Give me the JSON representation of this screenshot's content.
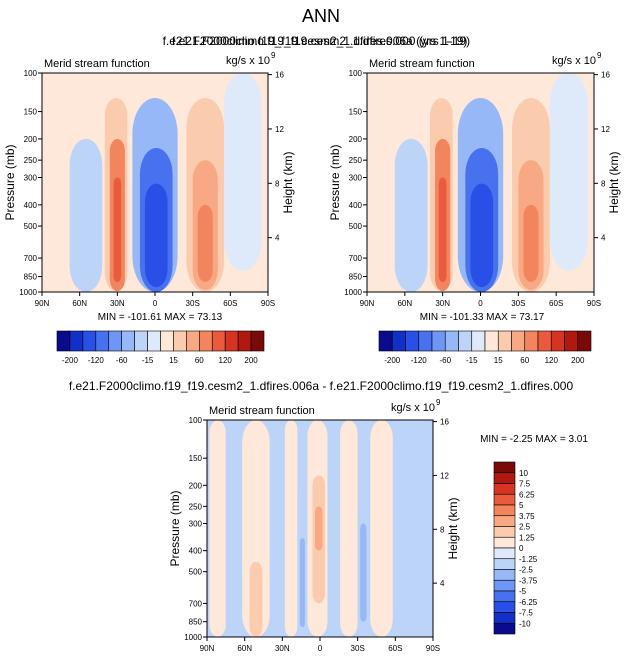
{
  "page": {
    "title": "ANN"
  },
  "colors": {
    "neg": [
      "#0a0a8c",
      "#1030c8",
      "#2850e6",
      "#4672f0",
      "#6e96f4",
      "#96b8f6",
      "#bcd4f8",
      "#deeafa"
    ],
    "pos": [
      "#fde8da",
      "#fbcbae",
      "#f8a882",
      "#f2845e",
      "#ea5a3c",
      "#d63420",
      "#b01810",
      "#7a0a08"
    ],
    "grid": "#000000"
  },
  "chart_data": [
    {
      "id": "panel-a",
      "type": "heatmap",
      "title": "f.e21.F2000climo.f19_f19.cesm2_1.dfires.006a (yrs 1-19)",
      "subtitle_left": "Merid stream function",
      "units": "kg/s x 10",
      "units_exp": "9",
      "ylabel": "Pressure (mb)",
      "ylabel_right": "Height (km)",
      "xticks": [
        "90N",
        "60N",
        "30N",
        "0",
        "30S",
        "60S",
        "90S"
      ],
      "yticks": [
        "100",
        "150",
        "200",
        "250",
        "300",
        "400",
        "500",
        "700",
        "850",
        "1000"
      ],
      "yticks_right": [
        "16",
        "12",
        "8",
        "4"
      ],
      "stats": "MIN = -101.61   MAX = 73.13",
      "levels": [
        -200,
        -160,
        -120,
        -80,
        -60,
        -40,
        -15,
        -5,
        5,
        15,
        40,
        60,
        80,
        120,
        160,
        200
      ],
      "level_labels": [
        "-200",
        "-120",
        "-60",
        "-15",
        "15",
        "60",
        "120",
        "200"
      ],
      "cells": [
        {
          "lat": [
            -68,
            -42
          ],
          "p": [
            200,
            1000
          ],
          "v": -10
        },
        {
          "lat": [
            -40,
            -22
          ],
          "p": [
            130,
            990
          ],
          "v": 20
        },
        {
          "lat": [
            -36,
            -24
          ],
          "p": [
            200,
            990
          ],
          "v": 60
        },
        {
          "lat": [
            -33,
            -27
          ],
          "p": [
            300,
            900
          ],
          "v": 80
        },
        {
          "lat": [
            -18,
            18
          ],
          "p": [
            130,
            1000
          ],
          "v": -40
        },
        {
          "lat": [
            -12,
            14
          ],
          "p": [
            220,
            1000
          ],
          "v": -70
        },
        {
          "lat": [
            -8,
            10
          ],
          "p": [
            320,
            950
          ],
          "v": -90
        },
        {
          "lat": [
            25,
            55
          ],
          "p": [
            130,
            1000
          ],
          "v": 15
        },
        {
          "lat": [
            30,
            50
          ],
          "p": [
            250,
            980
          ],
          "v": 40
        },
        {
          "lat": [
            34,
            46
          ],
          "p": [
            400,
            900
          ],
          "v": 65
        },
        {
          "lat": [
            55,
            85
          ],
          "p": [
            100,
            800
          ],
          "v": -5
        }
      ]
    },
    {
      "id": "panel-b",
      "type": "heatmap",
      "title": "f.e21.F2000climo.f19_f19.cesm2_1.dfires.000 (yrs 1-19)",
      "subtitle_left": "Merid stream function",
      "units": "kg/s x 10",
      "units_exp": "9",
      "ylabel": "Pressure (mb)",
      "ylabel_right": "Height (km)",
      "xticks": [
        "90N",
        "60N",
        "30N",
        "0",
        "30S",
        "60S",
        "90S"
      ],
      "yticks": [
        "100",
        "150",
        "200",
        "250",
        "300",
        "400",
        "500",
        "700",
        "850",
        "1000"
      ],
      "yticks_right": [
        "16",
        "12",
        "8",
        "4"
      ],
      "stats": "MIN = -101.33   MAX = 73.17",
      "levels": [
        -200,
        -160,
        -120,
        -80,
        -60,
        -40,
        -15,
        -5,
        5,
        15,
        40,
        60,
        80,
        120,
        160,
        200
      ],
      "level_labels": [
        "-200",
        "-120",
        "-60",
        "-15",
        "15",
        "60",
        "120",
        "200"
      ],
      "cells": [
        {
          "lat": [
            -68,
            -42
          ],
          "p": [
            200,
            1000
          ],
          "v": -10
        },
        {
          "lat": [
            -40,
            -22
          ],
          "p": [
            130,
            990
          ],
          "v": 20
        },
        {
          "lat": [
            -36,
            -24
          ],
          "p": [
            200,
            990
          ],
          "v": 60
        },
        {
          "lat": [
            -33,
            -27
          ],
          "p": [
            300,
            900
          ],
          "v": 80
        },
        {
          "lat": [
            -18,
            18
          ],
          "p": [
            130,
            1000
          ],
          "v": -40
        },
        {
          "lat": [
            -12,
            14
          ],
          "p": [
            220,
            1000
          ],
          "v": -70
        },
        {
          "lat": [
            -8,
            10
          ],
          "p": [
            320,
            950
          ],
          "v": -90
        },
        {
          "lat": [
            25,
            55
          ],
          "p": [
            130,
            1000
          ],
          "v": 15
        },
        {
          "lat": [
            30,
            50
          ],
          "p": [
            250,
            980
          ],
          "v": 40
        },
        {
          "lat": [
            34,
            46
          ],
          "p": [
            400,
            900
          ],
          "v": 65
        },
        {
          "lat": [
            55,
            85
          ],
          "p": [
            100,
            800
          ],
          "v": -5
        }
      ]
    },
    {
      "id": "panel-diff",
      "type": "heatmap",
      "title": "f.e21.F2000climo.f19_f19.cesm2_1.dfires.006a - f.e21.F2000climo.f19_f19.cesm2_1.dfires.000",
      "subtitle_left": "Merid stream function",
      "units": "kg/s x 10",
      "units_exp": "9",
      "ylabel": "Pressure (mb)",
      "ylabel_right": "Height (km)",
      "xticks": [
        "90N",
        "60N",
        "30N",
        "0",
        "30S",
        "60S",
        "90S"
      ],
      "yticks": [
        "100",
        "150",
        "200",
        "250",
        "300",
        "400",
        "500",
        "700",
        "850",
        "1000"
      ],
      "yticks_right": [
        "16",
        "12",
        "8",
        "4"
      ],
      "stats": "MIN = -2.25   MAX = 3.01",
      "levels": [
        -10,
        -7.5,
        -6.25,
        -5,
        -3.75,
        -2.5,
        -1.25,
        0,
        1.25,
        2.5,
        3.75,
        5,
        6.25,
        7.5,
        10
      ],
      "level_labels": [
        "10",
        "7.5",
        "6.25",
        "5",
        "3.75",
        "2.5",
        "1.25",
        "0",
        "-1.25",
        "-2.5",
        "-3.75",
        "-5",
        "-6.25",
        "-7.5",
        "-10"
      ],
      "cells": [
        {
          "lat": [
            -88,
            -75
          ],
          "p": [
            100,
            1000
          ],
          "v": 0.5
        },
        {
          "lat": [
            -75,
            -62
          ],
          "p": [
            100,
            1000
          ],
          "v": -0.5
        },
        {
          "lat": [
            -62,
            -40
          ],
          "p": [
            100,
            1000
          ],
          "v": 0.5
        },
        {
          "lat": [
            -56,
            -46
          ],
          "p": [
            450,
            1000
          ],
          "v": 1.5
        },
        {
          "lat": [
            -40,
            -28
          ],
          "p": [
            100,
            1000
          ],
          "v": -0.5
        },
        {
          "lat": [
            -28,
            -18
          ],
          "p": [
            100,
            1000
          ],
          "v": 0.5
        },
        {
          "lat": [
            -18,
            -10
          ],
          "p": [
            200,
            1000
          ],
          "v": -0.5
        },
        {
          "lat": [
            -16,
            -12
          ],
          "p": [
            350,
            900
          ],
          "v": -1.5
        },
        {
          "lat": [
            -10,
            6
          ],
          "p": [
            100,
            1000
          ],
          "v": 0.5
        },
        {
          "lat": [
            -6,
            4
          ],
          "p": [
            180,
            700
          ],
          "v": 1.5
        },
        {
          "lat": [
            -4,
            2
          ],
          "p": [
            250,
            400
          ],
          "v": 2.8
        },
        {
          "lat": [
            6,
            16
          ],
          "p": [
            100,
            1000
          ],
          "v": -0.5
        },
        {
          "lat": [
            16,
            30
          ],
          "p": [
            100,
            1000
          ],
          "v": 0.5
        },
        {
          "lat": [
            30,
            40
          ],
          "p": [
            100,
            1000
          ],
          "v": -0.5
        },
        {
          "lat": [
            32,
            37
          ],
          "p": [
            300,
            850
          ],
          "v": -1.5
        },
        {
          "lat": [
            40,
            58
          ],
          "p": [
            100,
            1000
          ],
          "v": 0.5
        },
        {
          "lat": [
            58,
            90
          ],
          "p": [
            100,
            1000
          ],
          "v": -0.5
        }
      ]
    }
  ]
}
